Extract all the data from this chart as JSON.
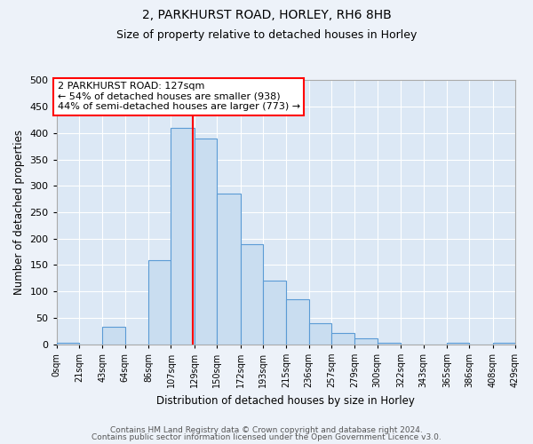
{
  "title": "2, PARKHURST ROAD, HORLEY, RH6 8HB",
  "subtitle": "Size of property relative to detached houses in Horley",
  "xlabel": "Distribution of detached houses by size in Horley",
  "ylabel": "Number of detached properties",
  "bin_labels": [
    "0sqm",
    "21sqm",
    "43sqm",
    "64sqm",
    "86sqm",
    "107sqm",
    "129sqm",
    "150sqm",
    "172sqm",
    "193sqm",
    "215sqm",
    "236sqm",
    "257sqm",
    "279sqm",
    "300sqm",
    "322sqm",
    "343sqm",
    "365sqm",
    "386sqm",
    "408sqm",
    "429sqm"
  ],
  "bin_edges": [
    0,
    21,
    43,
    64,
    86,
    107,
    129,
    150,
    172,
    193,
    215,
    236,
    257,
    279,
    300,
    322,
    343,
    365,
    386,
    408,
    429
  ],
  "bar_heights": [
    2,
    0,
    33,
    0,
    160,
    410,
    390,
    285,
    190,
    120,
    85,
    40,
    22,
    12,
    2,
    0,
    0,
    2,
    0,
    2
  ],
  "bar_color": "#c9ddf0",
  "bar_edge_color": "#5b9bd5",
  "vline_x": 127,
  "vline_color": "red",
  "annotation_title": "2 PARKHURST ROAD: 127sqm",
  "annotation_line1": "← 54% of detached houses are smaller (938)",
  "annotation_line2": "44% of semi-detached houses are larger (773) →",
  "annotation_box_color": "white",
  "annotation_box_edge_color": "red",
  "ylim": [
    0,
    500
  ],
  "yticks": [
    0,
    50,
    100,
    150,
    200,
    250,
    300,
    350,
    400,
    450,
    500
  ],
  "footer1": "Contains HM Land Registry data © Crown copyright and database right 2024.",
  "footer2": "Contains public sector information licensed under the Open Government Licence v3.0.",
  "bg_color": "#edf2f9",
  "plot_bg_color": "#dce8f5",
  "title_fontsize": 10,
  "subtitle_fontsize": 9
}
